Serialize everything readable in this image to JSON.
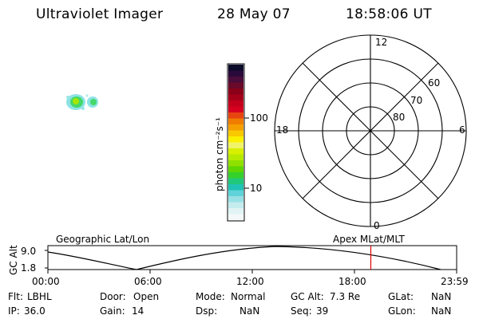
{
  "header": {
    "title": "Ultraviolet Imager",
    "date": "28 May 07",
    "time": "18:58:06 UT"
  },
  "colorbar": {
    "label": "photon cm⁻²s⁻¹",
    "ticks": [
      "100",
      "10"
    ],
    "colors": [
      "#0b0b2a",
      "#2a0a3a",
      "#4a0c3a",
      "#6a0a2a",
      "#8a0018",
      "#a5001a",
      "#c2001c",
      "#d6001e",
      "#e84410",
      "#f07c00",
      "#f5a000",
      "#f8c800",
      "#fbf000",
      "#f0f36a",
      "#d8f000",
      "#b6ea00",
      "#8fe000",
      "#5fd600",
      "#35d02a",
      "#21c87a",
      "#1fc3b5",
      "#5fd3d9",
      "#98e0e4",
      "#c4ecee",
      "#e1f3f4",
      "#f4f8f8"
    ]
  },
  "polar": {
    "labels": [
      "12",
      "60",
      "70",
      "80",
      "18",
      "6",
      "0"
    ]
  },
  "timeline": {
    "ylabel": "GC Alt",
    "top_left": "Geographic Lat/Lon",
    "top_right": "Apex MLat/MLT",
    "ymax": "9.0",
    "ymin": "1.8",
    "xticks": [
      "00:00",
      "06:00",
      "12:00",
      "18:00",
      "23:59"
    ],
    "current_time_fraction": 0.79
  },
  "info": {
    "row1": [
      {
        "label": "Flt:",
        "value": "LBHL"
      },
      {
        "label": "Door:",
        "value": "Open"
      },
      {
        "label": "Mode:",
        "value": "Normal"
      },
      {
        "label": "GC Alt:",
        "value": "7.3 Re"
      },
      {
        "label": "GLat:",
        "value": "NaN"
      }
    ],
    "row2": [
      {
        "label": "IP:",
        "value": "36.0"
      },
      {
        "label": "Gain:",
        "value": "14"
      },
      {
        "label": "Dsp:",
        "value": "NaN"
      },
      {
        "label": "Seq:",
        "value": "39"
      },
      {
        "label": "GLon:",
        "value": "NaN"
      }
    ]
  },
  "image_colors": {
    "cyan": "#58d8d8",
    "green": "#35d03a"
  }
}
